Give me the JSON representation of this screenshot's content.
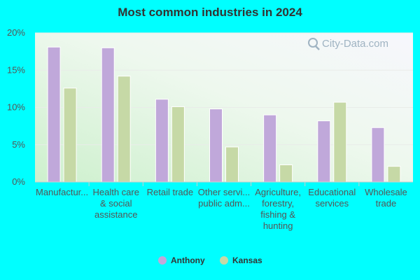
{
  "title": "Most common industries in 2024",
  "watermark": "City-Data.com",
  "colors": {
    "anthony": "#c0a8da",
    "kansas": "#c6d9a6",
    "background": "#00ffff"
  },
  "chart_data": {
    "type": "bar",
    "title": "Most common industries in 2024",
    "categories": [
      [
        "Manufactur..."
      ],
      [
        "Health care",
        "& social",
        "assistance"
      ],
      [
        "Retail trade"
      ],
      [
        "Other servi...",
        "public adm..."
      ],
      [
        "Agriculture,",
        "forestry,",
        "fishing &",
        "hunting"
      ],
      [
        "Educational",
        "services"
      ],
      [
        "Wholesale",
        "trade"
      ]
    ],
    "series": [
      {
        "name": "Anthony",
        "values": [
          18.1,
          18.0,
          11.1,
          9.8,
          9.0,
          8.2,
          7.3
        ]
      },
      {
        "name": "Kansas",
        "values": [
          12.6,
          14.2,
          10.1,
          4.7,
          2.3,
          10.7,
          2.1
        ]
      }
    ],
    "yticks": [
      "0%",
      "5%",
      "10%",
      "15%",
      "20%"
    ],
    "ylim": [
      0,
      20
    ],
    "grid": true,
    "legend_position": "bottom"
  }
}
